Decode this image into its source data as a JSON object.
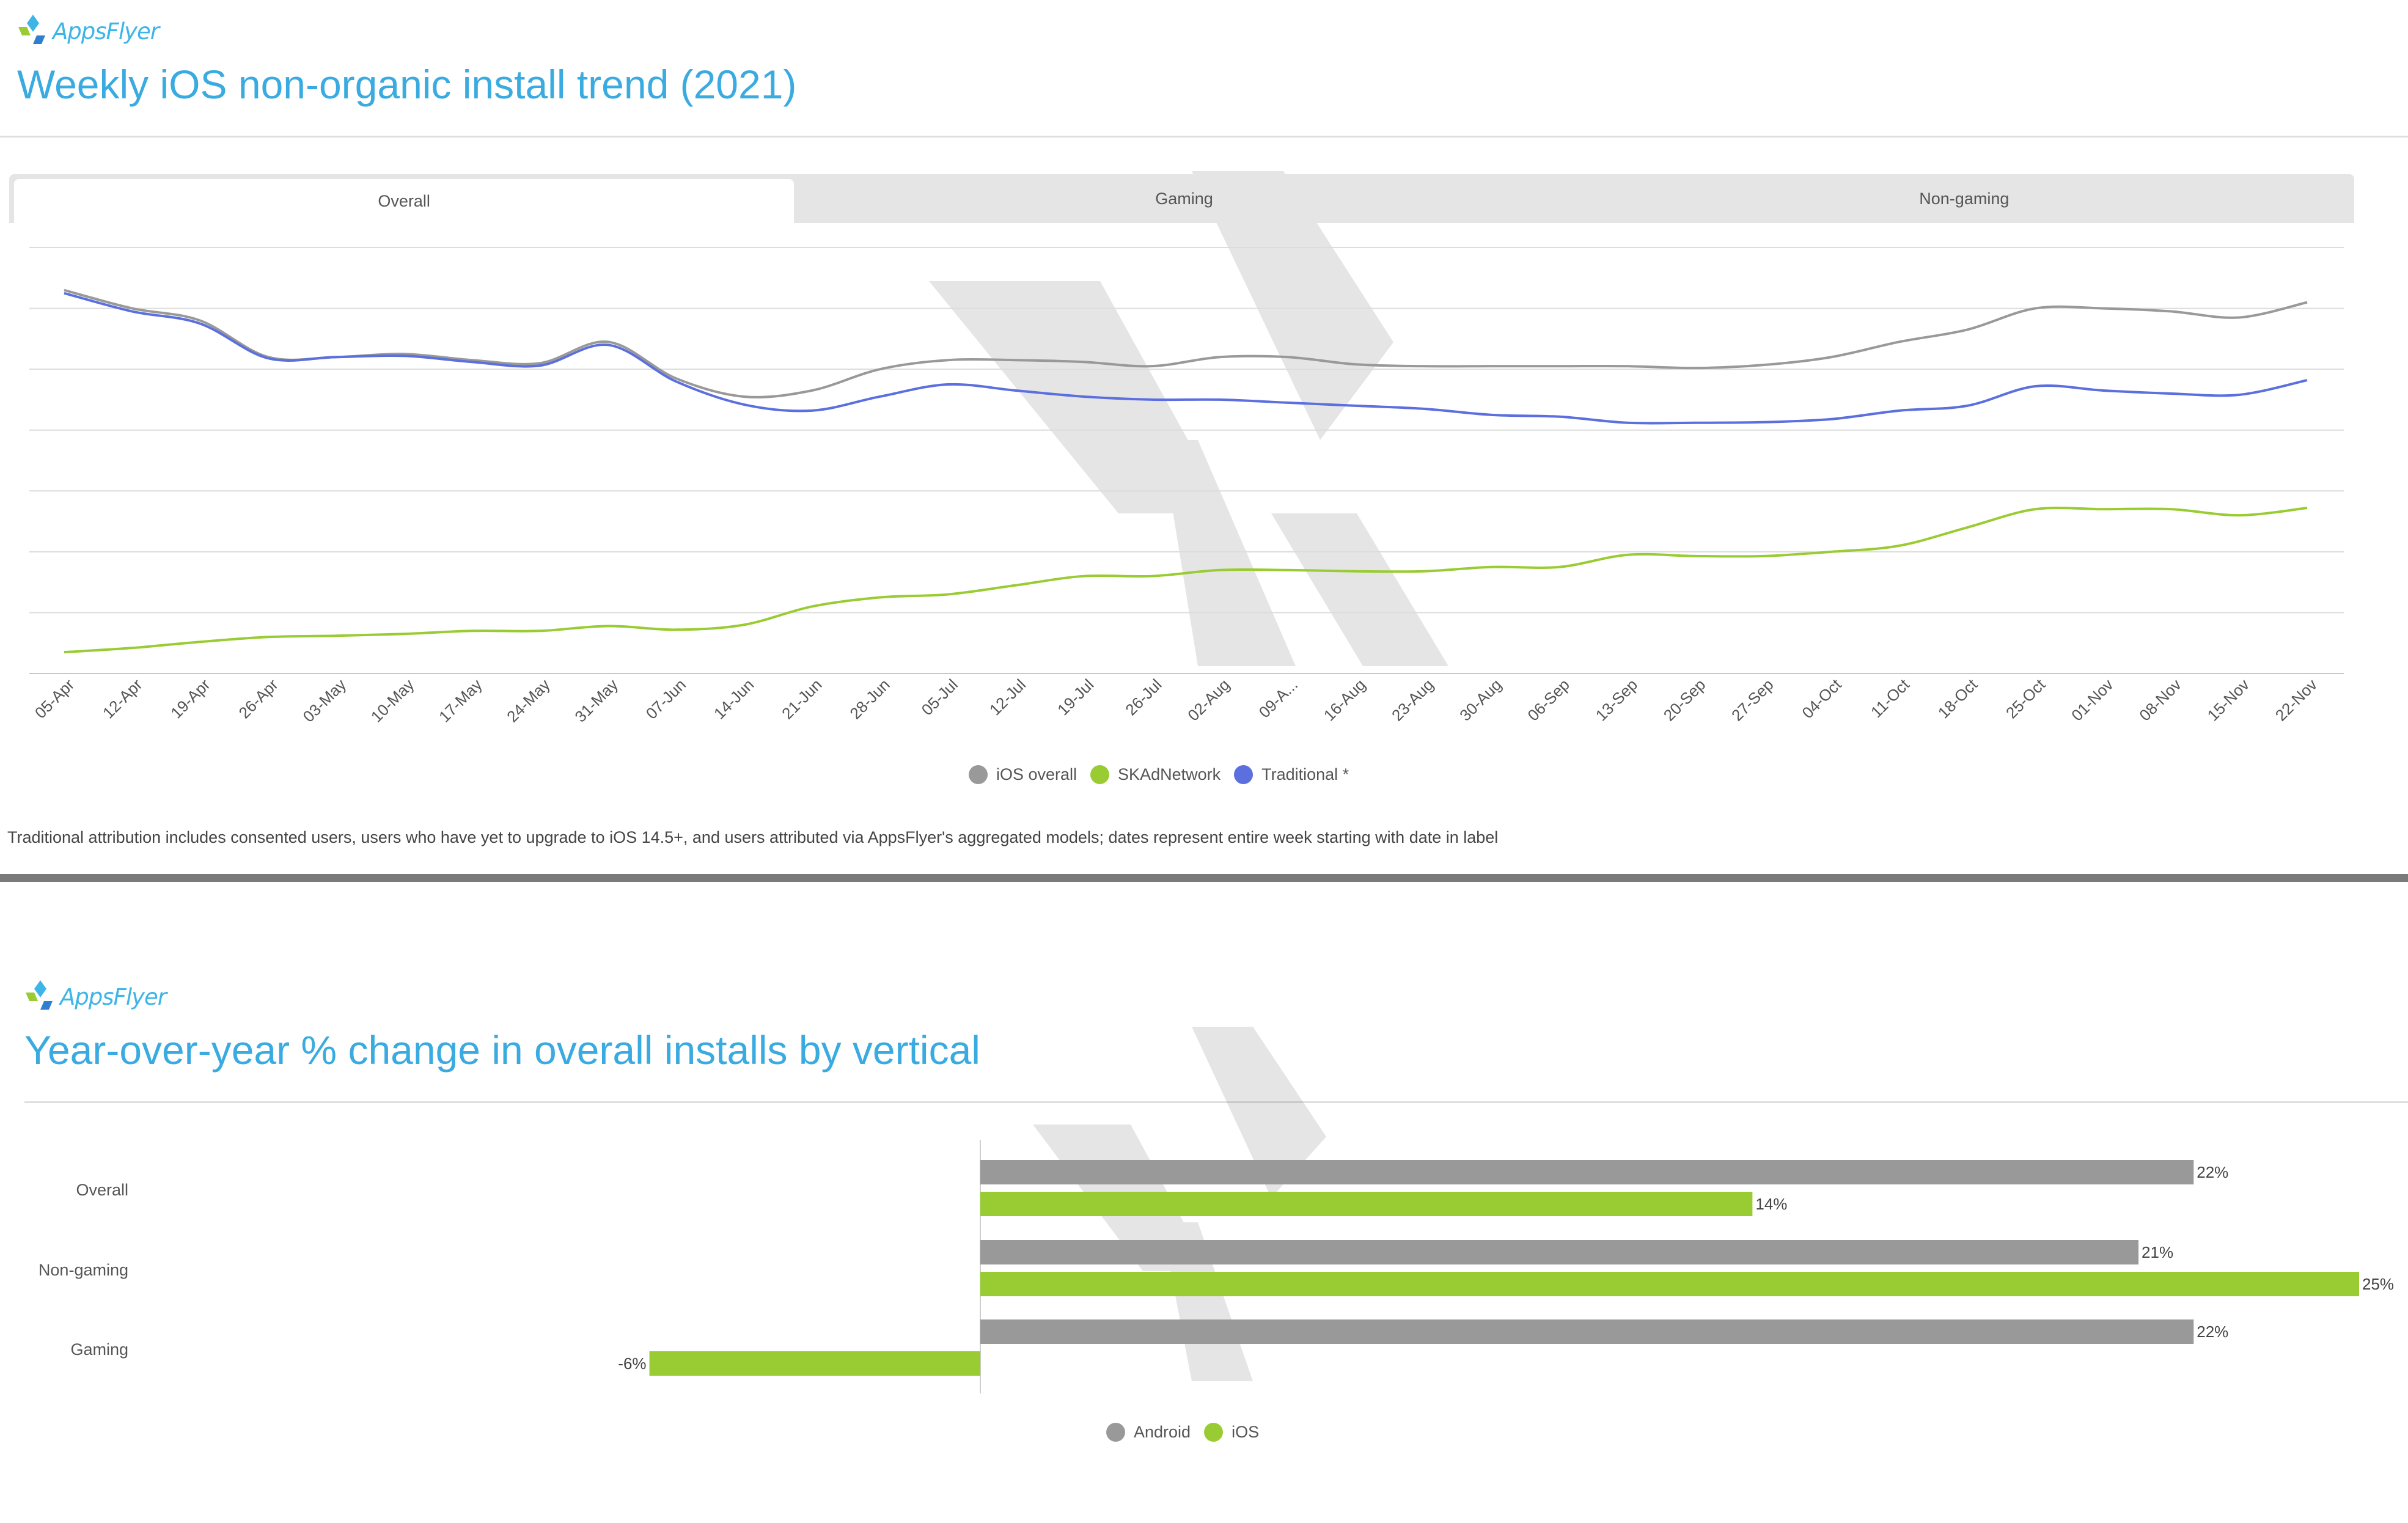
{
  "brand": {
    "name": "AppsFlyer",
    "accent": "#3aabe0"
  },
  "top": {
    "title": "Weekly iOS non-organic install trend (2021)",
    "tabs": [
      {
        "label": "Overall",
        "active": true
      },
      {
        "label": "Gaming",
        "active": false
      },
      {
        "label": "Non-gaming",
        "active": false
      }
    ],
    "footnote": "Traditional attribution includes consented users, users who have yet to upgrade to iOS 14.5+, and users attributed via AppsFlyer's aggregated models; dates represent entire week starting with date in label"
  },
  "bottom": {
    "title": "Year-over-year % change in overall installs by vertical"
  },
  "chart_data": [
    {
      "type": "line",
      "title": "Weekly iOS non-organic install trend (2021)",
      "y_axis_labels_shown": false,
      "grid": true,
      "legend_position": "bottom-center",
      "ylim": [
        0,
        7
      ],
      "x": [
        "05-Apr",
        "12-Apr",
        "19-Apr",
        "26-Apr",
        "03-May",
        "10-May",
        "17-May",
        "24-May",
        "31-May",
        "07-Jun",
        "14-Jun",
        "21-Jun",
        "28-Jun",
        "05-Jul",
        "12-Jul",
        "19-Jul",
        "26-Jul",
        "02-Aug",
        "09-A...",
        "16-Aug",
        "23-Aug",
        "30-Aug",
        "06-Sep",
        "13-Sep",
        "20-Sep",
        "27-Sep",
        "04-Oct",
        "11-Oct",
        "18-Oct",
        "25-Oct",
        "01-Nov",
        "08-Nov",
        "15-Nov",
        "22-Nov"
      ],
      "series": [
        {
          "name": "iOS overall",
          "color": "#999999",
          "values": [
            6.3,
            6.0,
            5.8,
            5.2,
            5.2,
            5.25,
            5.15,
            5.1,
            5.45,
            4.85,
            4.55,
            4.65,
            5.0,
            5.15,
            5.15,
            5.12,
            5.05,
            5.2,
            5.2,
            5.08,
            5.05,
            5.05,
            5.05,
            5.05,
            5.02,
            5.07,
            5.2,
            5.45,
            5.65,
            6.0,
            6.0,
            5.95,
            5.85,
            6.1
          ]
        },
        {
          "name": "SKAdNetwork",
          "color": "#99cc33",
          "values": [
            0.35,
            0.42,
            0.52,
            0.6,
            0.62,
            0.65,
            0.7,
            0.7,
            0.78,
            0.72,
            0.8,
            1.1,
            1.25,
            1.3,
            1.45,
            1.6,
            1.6,
            1.7,
            1.7,
            1.68,
            1.68,
            1.75,
            1.75,
            1.95,
            1.93,
            1.93,
            2.0,
            2.1,
            2.4,
            2.7,
            2.7,
            2.7,
            2.6,
            2.72
          ]
        },
        {
          "name": "Traditional *",
          "color": "#5b6fde",
          "values": [
            6.25,
            5.95,
            5.75,
            5.18,
            5.2,
            5.22,
            5.12,
            5.06,
            5.4,
            4.8,
            4.42,
            4.32,
            4.55,
            4.75,
            4.65,
            4.55,
            4.5,
            4.5,
            4.45,
            4.4,
            4.35,
            4.25,
            4.22,
            4.12,
            4.12,
            4.13,
            4.18,
            4.32,
            4.4,
            4.72,
            4.65,
            4.6,
            4.58,
            4.82
          ]
        }
      ]
    },
    {
      "type": "bar",
      "orientation": "horizontal",
      "title": "Year-over-year % change in overall installs by vertical",
      "legend_position": "bottom-center",
      "categories": [
        "Overall",
        "Non-gaming",
        "Gaming"
      ],
      "xlim": [
        -11.7,
        25
      ],
      "series": [
        {
          "name": "Android",
          "color": "#999999",
          "values": [
            22,
            21,
            22
          ],
          "labels": [
            "22%",
            "21%",
            "22%"
          ]
        },
        {
          "name": "iOS",
          "color": "#99cc33",
          "values": [
            14,
            25,
            -6
          ],
          "labels": [
            "14%",
            "25%",
            "-6%"
          ]
        }
      ]
    }
  ]
}
